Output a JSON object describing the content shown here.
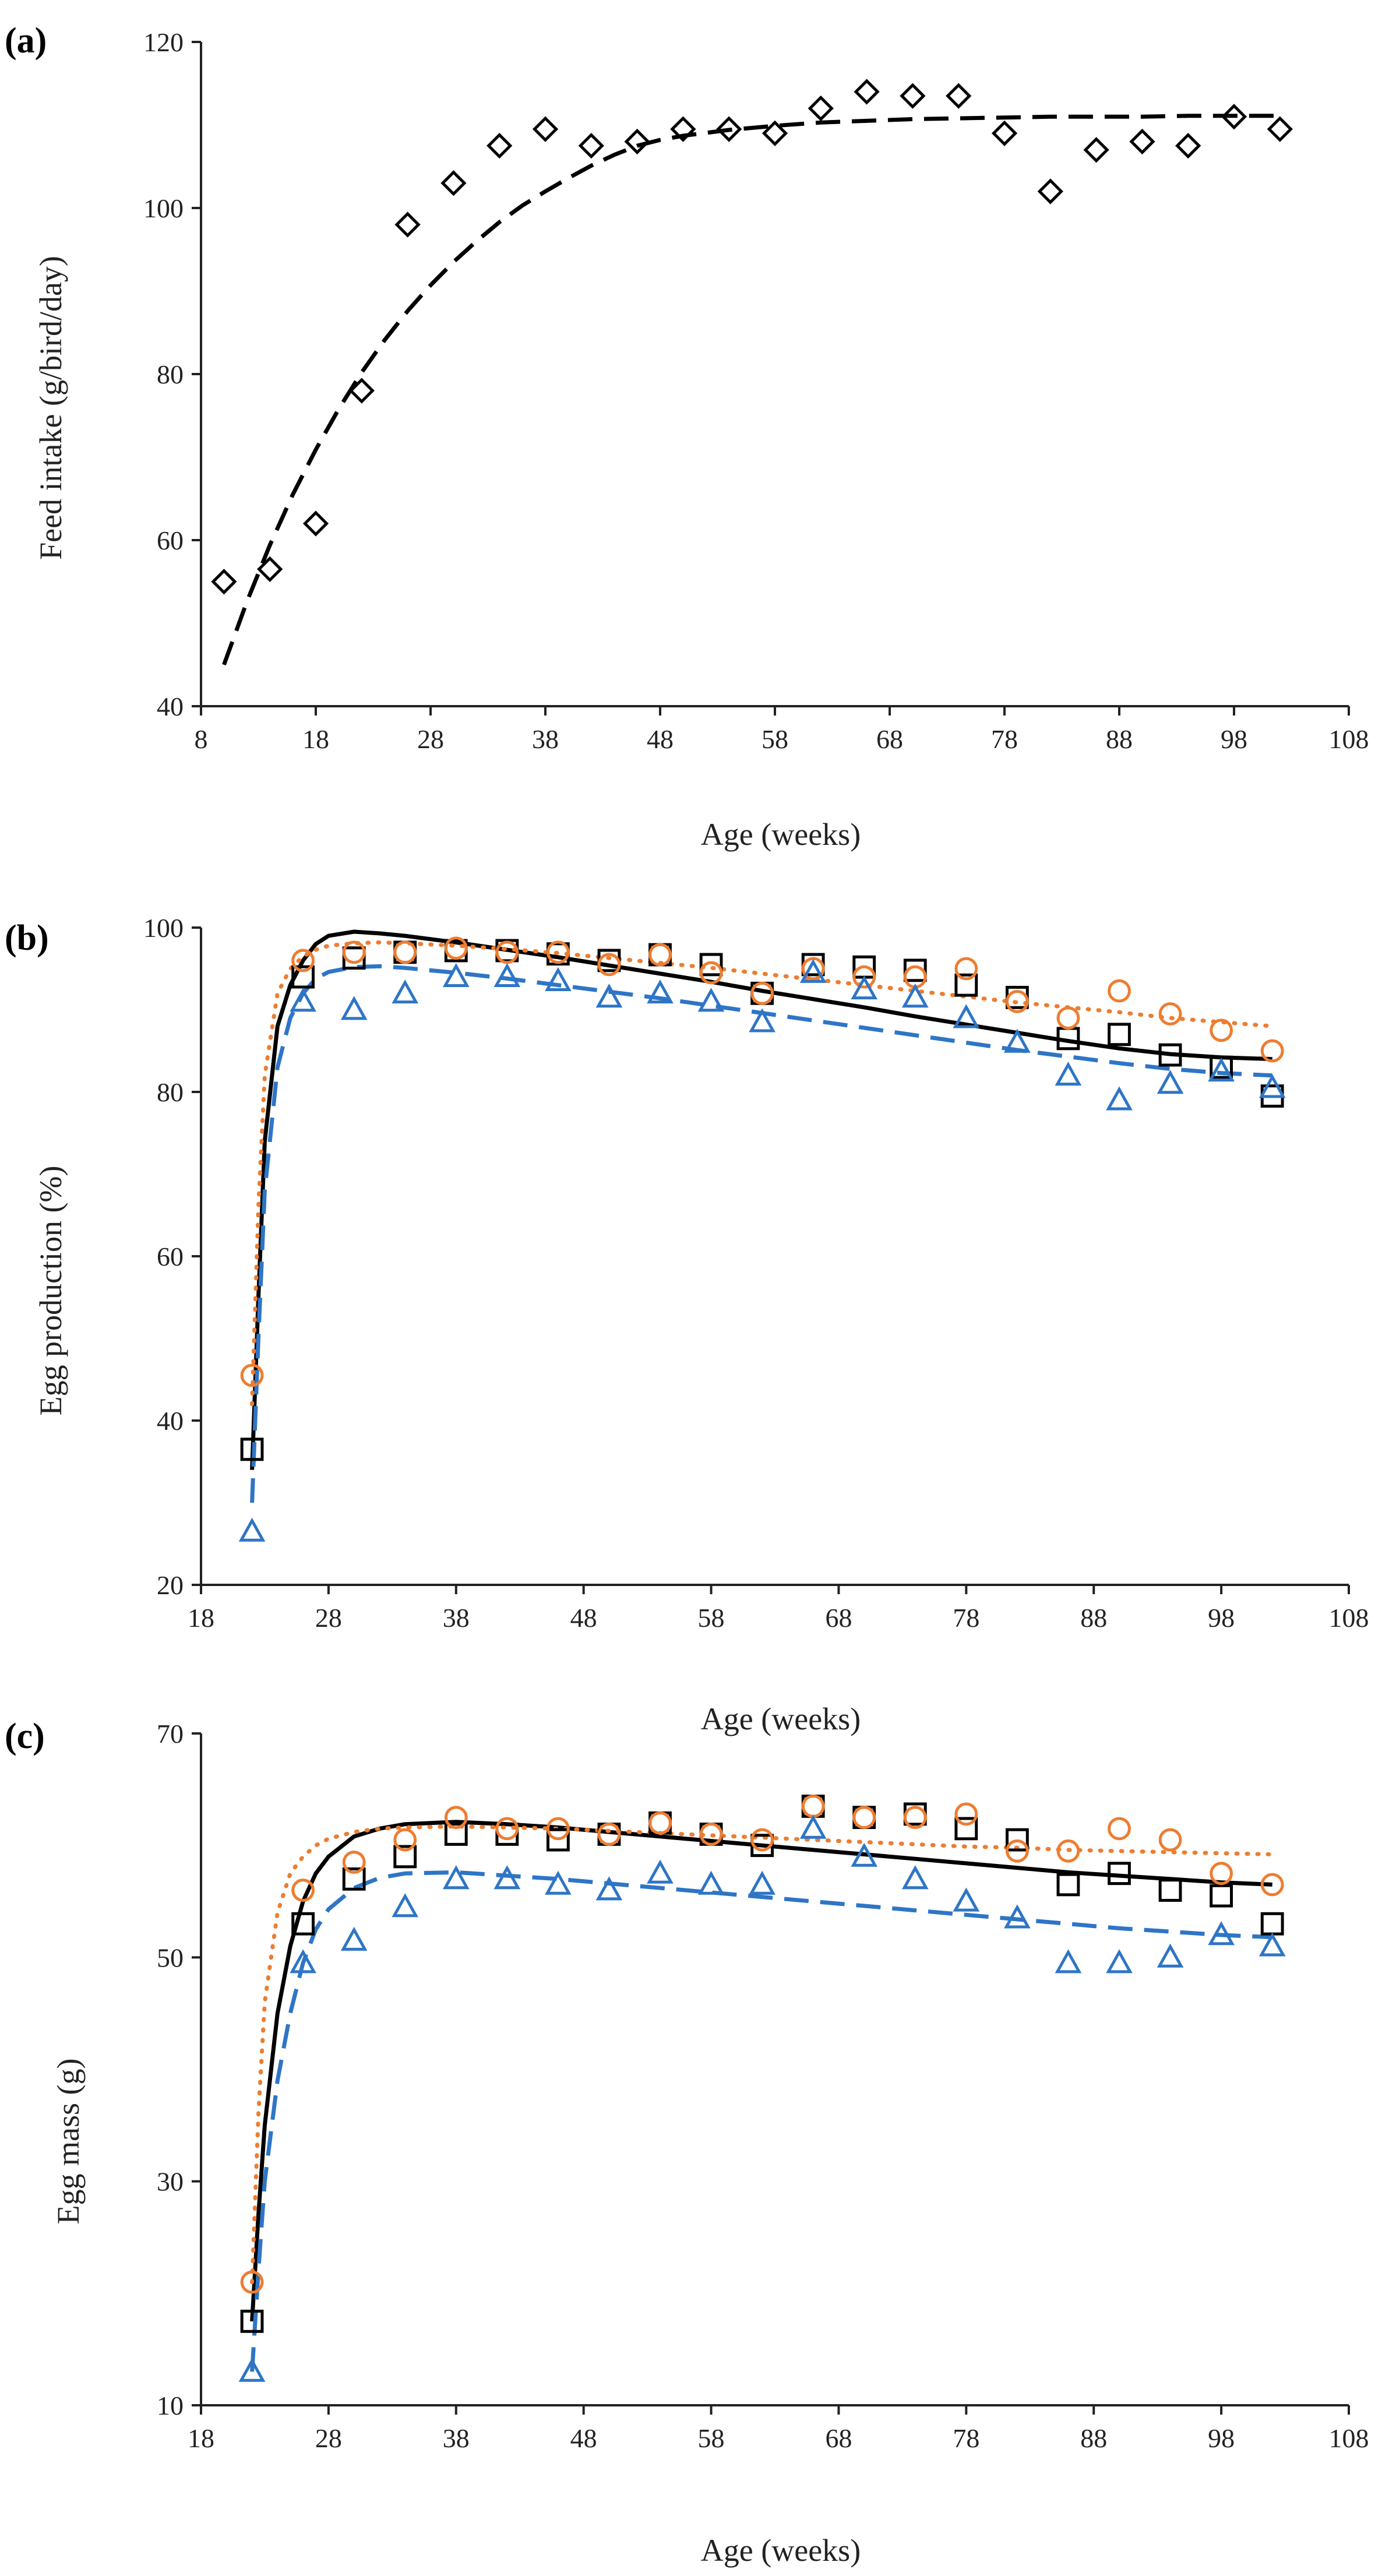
{
  "colors": {
    "black": "#000000",
    "orange": "#ED7D31",
    "blue": "#2E75C6",
    "axis": "#222222"
  },
  "chart_data": [
    {
      "type": "scatter",
      "panel_label": "(a)",
      "xlabel": "Age (weeks)",
      "ylabel": "Feed intake (g/bird/day)",
      "xlim": [
        8,
        108
      ],
      "ylim": [
        40,
        120
      ],
      "xticks": [
        8,
        18,
        28,
        38,
        48,
        58,
        68,
        78,
        88,
        98,
        108
      ],
      "yticks": [
        40,
        60,
        80,
        100,
        120
      ],
      "series": [
        {
          "name": "Observed feed intake",
          "marker": "diamond",
          "color": "#000000",
          "x": [
            10,
            14,
            18,
            22,
            26,
            30,
            34,
            38,
            42,
            46,
            50,
            54,
            58,
            62,
            66,
            70,
            74,
            78,
            82,
            86,
            90,
            94,
            98,
            102
          ],
          "y": [
            55,
            56.5,
            62,
            78,
            98,
            103,
            107.5,
            109.5,
            107.5,
            108,
            109.5,
            109.5,
            109,
            112,
            114,
            113.5,
            113.5,
            109,
            102,
            107,
            108,
            107.5,
            111,
            109.5
          ]
        }
      ],
      "fits": [
        {
          "name": "Fitted curve",
          "style": "dashed",
          "color": "#000000",
          "x": [
            10,
            12,
            14,
            16,
            18,
            20,
            22,
            24,
            26,
            28,
            30,
            32,
            34,
            36,
            38,
            40,
            42,
            44,
            46,
            48,
            50,
            54,
            58,
            62,
            66,
            70,
            74,
            78,
            82,
            86,
            90,
            94,
            98,
            102
          ],
          "y": [
            45,
            52.6,
            59.4,
            65.5,
            70.9,
            75.8,
            80.2,
            84.1,
            87.6,
            90.7,
            93.5,
            96,
            98.3,
            100.3,
            102,
            103.6,
            105.1,
            106.4,
            107.5,
            108.2,
            108.7,
            109.4,
            109.9,
            110.3,
            110.5,
            110.7,
            110.8,
            110.9,
            111,
            111,
            111,
            111.1,
            111.1,
            111.1
          ]
        }
      ]
    },
    {
      "type": "scatter",
      "panel_label": "(b)",
      "xlabel": "Age (weeks)",
      "ylabel": "Egg production (%)",
      "xlim": [
        18,
        108
      ],
      "ylim": [
        20,
        100
      ],
      "xticks": [
        18,
        28,
        38,
        48,
        58,
        68,
        78,
        88,
        98,
        108
      ],
      "yticks": [
        20,
        40,
        60,
        80,
        100
      ],
      "series": [
        {
          "name": "Square",
          "marker": "square",
          "color": "#000000",
          "x": [
            22,
            26,
            30,
            34,
            38,
            42,
            46,
            50,
            54,
            58,
            62,
            66,
            70,
            74,
            78,
            82,
            86,
            90,
            94,
            98,
            102
          ],
          "y": [
            36.5,
            94,
            96.3,
            97,
            97.2,
            97.2,
            96.8,
            96,
            96.7,
            95.5,
            92,
            95.5,
            95.2,
            94.8,
            93,
            91.5,
            86.5,
            87,
            84.5,
            83,
            79.5
          ]
        },
        {
          "name": "Circle",
          "marker": "circle",
          "color": "#ED7D31",
          "x": [
            22,
            26,
            30,
            34,
            38,
            42,
            46,
            50,
            54,
            58,
            62,
            66,
            70,
            74,
            78,
            82,
            86,
            90,
            94,
            98,
            102
          ],
          "y": [
            45.5,
            96,
            97,
            97,
            97.5,
            97,
            97,
            95.5,
            96.7,
            94.5,
            92,
            95,
            94,
            94,
            95,
            91,
            89,
            92.3,
            89.5,
            87.5,
            85
          ]
        },
        {
          "name": "Triangle",
          "marker": "triangle",
          "color": "#2E75C6",
          "x": [
            22,
            26,
            30,
            34,
            38,
            42,
            46,
            50,
            54,
            58,
            62,
            66,
            70,
            74,
            78,
            82,
            86,
            90,
            94,
            98,
            102
          ],
          "y": [
            26.5,
            91,
            90,
            92,
            94,
            94,
            93.5,
            91.5,
            92,
            91,
            88.5,
            94.5,
            92.5,
            91.5,
            89,
            86,
            82,
            79,
            81,
            82.5,
            80.5
          ]
        }
      ],
      "fits": [
        {
          "name": "Square fit",
          "style": "solid",
          "color": "#000000",
          "x": [
            22,
            22.5,
            23,
            24,
            25,
            26,
            27,
            28,
            30,
            32,
            34,
            38,
            42,
            46,
            50,
            54,
            58,
            62,
            66,
            70,
            74,
            78,
            82,
            86,
            90,
            94,
            98,
            102
          ],
          "y": [
            34,
            55,
            74,
            88,
            93,
            96,
            98,
            99,
            99.5,
            99.3,
            99,
            98.2,
            97.3,
            96.4,
            95.4,
            94.4,
            93.4,
            92.3,
            91.3,
            90.3,
            89.2,
            88.2,
            87.2,
            86.2,
            85.3,
            84.6,
            84.2,
            84
          ]
        },
        {
          "name": "Circle fit",
          "style": "dotted",
          "color": "#ED7D31",
          "x": [
            22,
            22.5,
            23,
            24,
            25,
            26,
            27,
            28,
            30,
            32,
            34,
            38,
            42,
            46,
            50,
            54,
            58,
            62,
            66,
            70,
            74,
            78,
            82,
            86,
            90,
            94,
            98,
            102
          ],
          "y": [
            42,
            66,
            82,
            92,
            95,
            96.5,
            97.3,
            97.8,
            98.1,
            98.2,
            98.1,
            97.8,
            97.4,
            96.9,
            96.3,
            95.7,
            95.1,
            94.4,
            93.7,
            93,
            92.3,
            91.6,
            90.9,
            90.3,
            89.7,
            89,
            88.5,
            88
          ]
        },
        {
          "name": "Triangle fit",
          "style": "dashed",
          "color": "#2E75C6",
          "x": [
            22,
            22.5,
            23,
            24,
            25,
            26,
            27,
            28,
            30,
            32,
            34,
            38,
            42,
            46,
            50,
            54,
            58,
            62,
            66,
            70,
            74,
            78,
            82,
            86,
            90,
            94,
            98,
            102
          ],
          "y": [
            30,
            50,
            68,
            83,
            89,
            92,
            93.8,
            94.6,
            95.2,
            95.3,
            95.1,
            94.5,
            93.8,
            93,
            92.2,
            91.4,
            90.5,
            89.6,
            88.7,
            87.8,
            86.9,
            86,
            85.1,
            84.3,
            83.5,
            82.8,
            82.3,
            82
          ]
        }
      ]
    },
    {
      "type": "scatter",
      "panel_label": "(c)",
      "xlabel": "Age (weeks)",
      "ylabel": "Egg mass (g)",
      "xlim": [
        18,
        108
      ],
      "ylim": [
        10,
        70
      ],
      "xticks": [
        18,
        28,
        38,
        48,
        58,
        68,
        78,
        88,
        98,
        108
      ],
      "yticks": [
        10,
        30,
        50,
        70
      ],
      "series": [
        {
          "name": "Square",
          "marker": "square",
          "color": "#000000",
          "x": [
            22,
            26,
            30,
            34,
            38,
            42,
            46,
            50,
            54,
            58,
            62,
            66,
            70,
            74,
            78,
            82,
            86,
            90,
            94,
            98,
            102
          ],
          "y": [
            17.5,
            53,
            57,
            59,
            61,
            61,
            60.5,
            61,
            62,
            61,
            60,
            63.5,
            62.5,
            62.8,
            61.5,
            60.5,
            56.5,
            57.5,
            56,
            55.5,
            53
          ]
        },
        {
          "name": "Circle",
          "marker": "circle",
          "color": "#ED7D31",
          "x": [
            22,
            26,
            30,
            34,
            38,
            42,
            46,
            50,
            54,
            58,
            62,
            66,
            70,
            74,
            78,
            82,
            86,
            90,
            94,
            98,
            102
          ],
          "y": [
            21,
            56,
            58.5,
            60.5,
            62.5,
            61.5,
            61.5,
            61,
            62,
            61,
            60.5,
            63.5,
            62.5,
            62.5,
            62.8,
            59.5,
            59.5,
            61.5,
            60.5,
            57.5,
            56.5
          ]
        },
        {
          "name": "Triangle",
          "marker": "triangle",
          "color": "#2E75C6",
          "x": [
            22,
            26,
            30,
            34,
            38,
            42,
            46,
            50,
            54,
            58,
            62,
            66,
            70,
            74,
            78,
            82,
            86,
            90,
            94,
            98,
            102
          ],
          "y": [
            13,
            49.5,
            51.5,
            54.5,
            57,
            57,
            56.5,
            56,
            57.5,
            56.5,
            56.5,
            61.5,
            59,
            57,
            55,
            53.5,
            49.5,
            49.5,
            50,
            52,
            51
          ]
        }
      ],
      "fits": [
        {
          "name": "Square fit",
          "style": "solid",
          "color": "#000000",
          "x": [
            22,
            22.5,
            23,
            24,
            25,
            26,
            27,
            28,
            30,
            32,
            34,
            38,
            42,
            46,
            50,
            54,
            58,
            62,
            66,
            70,
            74,
            78,
            82,
            86,
            90,
            94,
            98,
            102
          ],
          "y": [
            17.5,
            27,
            35,
            45,
            51,
            55,
            57.5,
            59,
            60.8,
            61.5,
            61.9,
            62.1,
            61.9,
            61.6,
            61.2,
            60.8,
            60.4,
            60,
            59.6,
            59.2,
            58.8,
            58.4,
            58,
            57.6,
            57.3,
            57,
            56.7,
            56.5
          ]
        },
        {
          "name": "Circle fit",
          "style": "dotted",
          "color": "#ED7D31",
          "x": [
            22,
            22.5,
            23,
            24,
            25,
            26,
            27,
            28,
            30,
            32,
            34,
            38,
            42,
            46,
            50,
            54,
            58,
            62,
            66,
            70,
            74,
            78,
            82,
            86,
            90,
            94,
            98,
            102
          ],
          "y": [
            21,
            36,
            46,
            54,
            57.5,
            59,
            60,
            60.6,
            61.2,
            61.5,
            61.6,
            61.7,
            61.6,
            61.5,
            61.3,
            61.1,
            60.9,
            60.7,
            60.5,
            60.3,
            60.1,
            59.9,
            59.8,
            59.6,
            59.5,
            59.4,
            59.3,
            59.2
          ]
        },
        {
          "name": "Triangle fit",
          "style": "dashed",
          "color": "#2E75C6",
          "x": [
            22,
            22.5,
            23,
            24,
            25,
            26,
            27,
            28,
            30,
            32,
            34,
            38,
            42,
            46,
            50,
            54,
            58,
            62,
            66,
            70,
            74,
            78,
            82,
            86,
            90,
            94,
            98,
            102
          ],
          "y": [
            13,
            22,
            30,
            39,
            45,
            49.5,
            52.5,
            54.3,
            56.2,
            57.1,
            57.5,
            57.6,
            57.3,
            57,
            56.6,
            56.2,
            55.8,
            55.4,
            55,
            54.6,
            54.2,
            53.8,
            53.4,
            53,
            52.6,
            52.3,
            52,
            51.8
          ]
        }
      ]
    }
  ]
}
